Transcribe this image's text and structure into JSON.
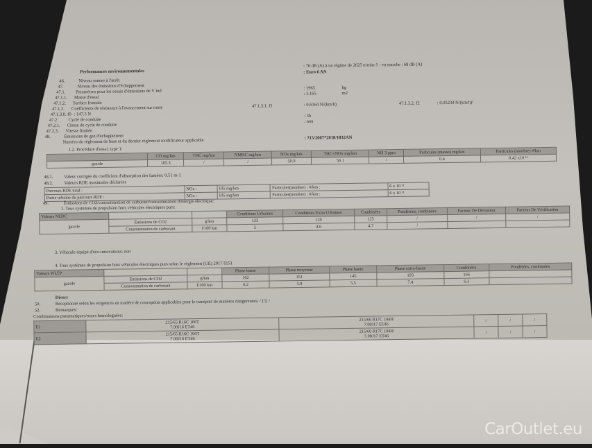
{
  "header": {
    "title": "Performances environnementales",
    "noise": ": 76 dB (A)   à un régime de 2625 tr/min-1 - en marche :   68 dB (A)",
    "euro": ": Euro 6 AN"
  },
  "lines": [
    {
      "num": "46.",
      "label": "Niveau sonore à l'arrêt",
      "value": ""
    },
    {
      "num": "47.",
      "label": "Niveau des émissions d'échappement",
      "value": ""
    },
    {
      "num": "47.1.",
      "label": "Paramètres pour les essais d'émissions de V ind",
      "value": ": 1965",
      "unit": "kg"
    },
    {
      "num": "47.1.1.",
      "label": "Masse d'essai",
      "value": ": 3.165",
      "unit": "m2"
    },
    {
      "num": "47.1.2.",
      "label": "Surface frontale",
      "value": ""
    },
    {
      "num": "47.1.3.",
      "label": "Coefficients de résistance à l'avancement sur route",
      "mid": "47.1.3.1.  f1",
      "value": ": 0.6164 N/(km/h)",
      "mid2": "47.1.3.2.  f2",
      "value2": ": 0.05234 N/(km/h)²"
    },
    {
      "num": "47.1.3.0. f0",
      "label": ": 147.3 N",
      "value": ""
    },
    {
      "num": "47.2",
      "label": "Cycle de conduite",
      "value": ": 3b"
    },
    {
      "num": "47.2.1.",
      "label": "Classe de cycle de conduite",
      "value": ": non"
    },
    {
      "num": "47.2.3.",
      "label": "Vitesse limitée",
      "value": ""
    },
    {
      "num": "48.",
      "label": "Émissions de gaz d'échappement",
      "value": ""
    },
    {
      "num": "",
      "label": "Numéro du règlement de base et du dernier règlement modificateur applicable",
      "value": ": 715/2007*2018/1832AN"
    }
  ],
  "procedure_label": "1.2. Procédure d'essai: type 1:",
  "type1": {
    "headers": [
      "CO mg/km",
      "THC mg/km",
      "NMHC mg/km",
      "NOx mg/km",
      "THC+NOx mg/km",
      "NH 3 ppm",
      "Particules (masse) mg/km",
      "Particules (nombre) #/km"
    ],
    "fuel": "gazole",
    "values": [
      "105.3",
      "/",
      "/",
      "50.9",
      "56.1",
      "/",
      "0.4",
      "0.42 x10 ¹¹"
    ]
  },
  "line_48_1": {
    "num": "48.1.",
    "label": "Valeur corrigée du coefficient d'absorption des fumées: 0.51 m-1"
  },
  "line_48_2": {
    "num": "48.2.",
    "label": "Valeurs RDE maximales déclarées"
  },
  "rde": [
    {
      "label": "Parcours RDE total :",
      "nox": "NOx :",
      "nox_val": "105 mg/km",
      "pn": "Particules(nombre) : #/km :",
      "pn_val": "6 x 10 ¹¹"
    },
    {
      "label": "Partie urbaine du parcours RDE     :",
      "nox": "NOx :",
      "nox_val": "105 mg/km",
      "pn": "Particules(nombre) : #/km :",
      "pn_val": "6 x 10 ¹¹"
    }
  ],
  "line_49": {
    "num": "49.",
    "label": "Émissions de CO2/consommation de carburant/consommation d'énergie électrique:"
  },
  "nedc_title": "1. Tous systèmes de propulsion hors véhicules électriques purs:",
  "nedc": {
    "corner": "Valeurs NEDC",
    "headers": [
      "Conditions Urbaines",
      "Conditions Extra Urbaines",
      "Combinées",
      "Pondérées, combinées",
      "Facteur De Déviation",
      "Facteur De Vérification"
    ],
    "fuel": "gazole",
    "rows": [
      {
        "label": "Émissions de CO2",
        "unit": "g/km",
        "values": [
          "133",
          "120",
          "125",
          "/",
          "/",
          "/"
        ]
      },
      {
        "label": "Consommation de carburant",
        "unit": "l/100 km",
        "values": [
          "5",
          "4.6",
          "4.7",
          "/",
          "",
          ""
        ]
      }
    ]
  },
  "eco": "3. Véhicule équipé d'éco-innovations: non",
  "wltp_title": "4. Tous systèmes de propulsion hors véhicules électriques purs selon le règlement (UE) 2017/1151",
  "wltp": {
    "corner": "Valeurs WLTP",
    "headers": [
      "Phase basse",
      "Phase moyenne",
      "Phase haute",
      "Phase extra-haute",
      "Combinées",
      "Pondérées, combinées"
    ],
    "fuel": "gazole",
    "rows": [
      {
        "label": "Émissions de CO2",
        "unit": "g/km",
        "values": [
          "162",
          "151",
          "145",
          "193",
          "166",
          ""
        ]
      },
      {
        "label": "Consommation de carburant",
        "unit": "l/100 km",
        "values": [
          "6.2",
          "5.8",
          "5.5",
          "7.4",
          "6.3",
          ""
        ]
      }
    ]
  },
  "divers": {
    "title": "Divers",
    "l50_num": "50.",
    "l50": "Réceptionné selon les exigences en matière de conception applicables pour le transport de matières dangereuses: / [/]: /",
    "l52_num": "52.",
    "l52": "Remarques:",
    "tyres_label": "Combinaisons pneumatiques/roues homologuées:"
  },
  "tyres": [
    {
      "id": "E1",
      "a": "215/65 R16C 106T",
      "a2": "7.00J16 ET46",
      "b": "215/60 R17C 104H",
      "b2": "7.00J17 ET46",
      "c": "/",
      "d": "/",
      "e": "/"
    },
    {
      "id": "E2",
      "a": "215/65 R16C 106T",
      "a2": "7.00J16 ET46",
      "b": "215/60 R17C 104H",
      "b2": "7.00J17 ET46",
      "c": "/",
      "d": "/",
      "e": "/"
    }
  ],
  "watermark": "CarOutlet.eu"
}
